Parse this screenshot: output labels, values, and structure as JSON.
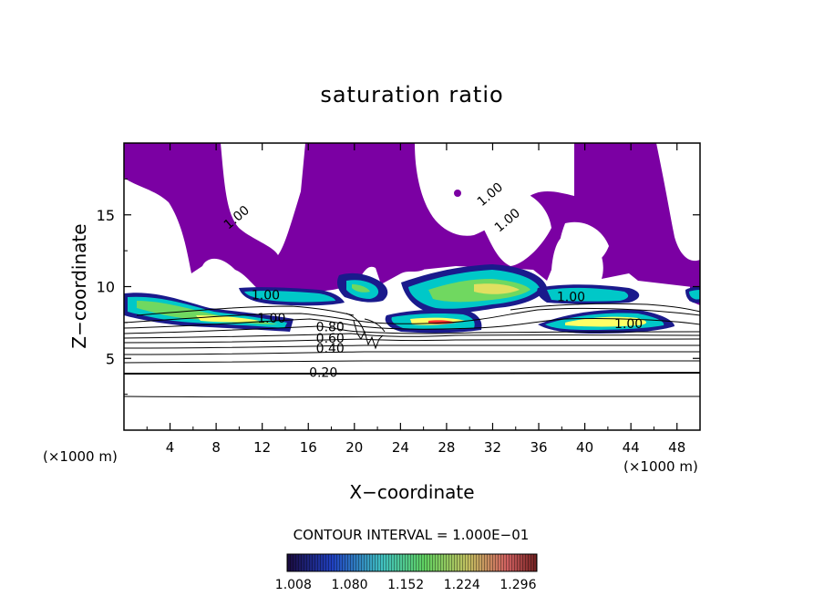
{
  "chart_data": {
    "type": "contour",
    "title": "saturation ratio",
    "xlabel": "X−coordinate",
    "ylabel": "Z−coordinate",
    "x_unit_left": "(×1000 m)",
    "x_unit_right": "(×1000 m)",
    "xlim": [
      0,
      50
    ],
    "ylim": [
      0,
      20
    ],
    "x_ticks": [
      4,
      8,
      12,
      16,
      20,
      24,
      28,
      32,
      36,
      40,
      44,
      48
    ],
    "y_ticks": [
      5,
      10,
      15
    ],
    "contour_interval_text": "CONTOUR INTERVAL = 1.000E−01",
    "contour_labels": [
      {
        "text": "1.00",
        "x": 10.0,
        "y": 14.6
      },
      {
        "text": "1.00",
        "x": 32.0,
        "y": 16.2
      },
      {
        "text": "1.00",
        "x": 33.5,
        "y": 14.4
      },
      {
        "text": "1.00",
        "x": 12.3,
        "y": 9.1
      },
      {
        "text": "1.00",
        "x": 12.8,
        "y": 7.5
      },
      {
        "text": "1.00",
        "x": 38.8,
        "y": 9.0
      },
      {
        "text": "1.00",
        "x": 43.8,
        "y": 7.1
      },
      {
        "text": "0.80",
        "x": 17.9,
        "y": 6.9
      },
      {
        "text": "0.60",
        "x": 17.9,
        "y": 6.1
      },
      {
        "text": "0.40",
        "x": 17.9,
        "y": 5.4
      },
      {
        "text": "0.20",
        "x": 17.3,
        "y": 3.7
      }
    ],
    "colorbar": {
      "ticks": [
        "1.008",
        "1.080",
        "1.152",
        "1.224",
        "1.296"
      ],
      "range": [
        1.0,
        1.32
      ]
    },
    "colors": {
      "subsaturated_region": "#7b00a3",
      "low": "#1a1a8c",
      "mid": "#00c8c8",
      "high": "#ffff66",
      "max": "#ff3030"
    }
  }
}
